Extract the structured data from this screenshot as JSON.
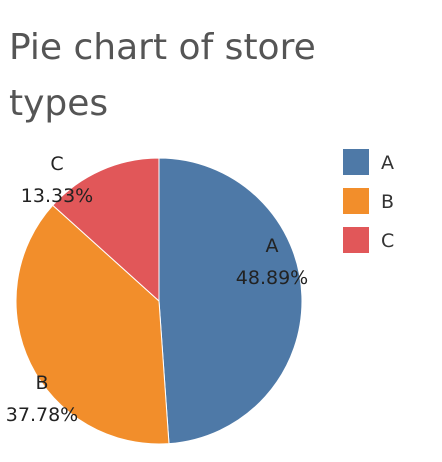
{
  "chart_data": {
    "type": "pie",
    "title": "Pie chart of store types",
    "categories": [
      "A",
      "B",
      "C"
    ],
    "values": [
      48.89,
      37.78,
      13.33
    ],
    "labels": [
      "48.89%",
      "37.78%",
      "13.33%"
    ],
    "colors": [
      "#4e79a7",
      "#f28e2b",
      "#e15759"
    ],
    "legend": {
      "placement": "right",
      "entries": [
        "A",
        "B",
        "C"
      ]
    }
  }
}
